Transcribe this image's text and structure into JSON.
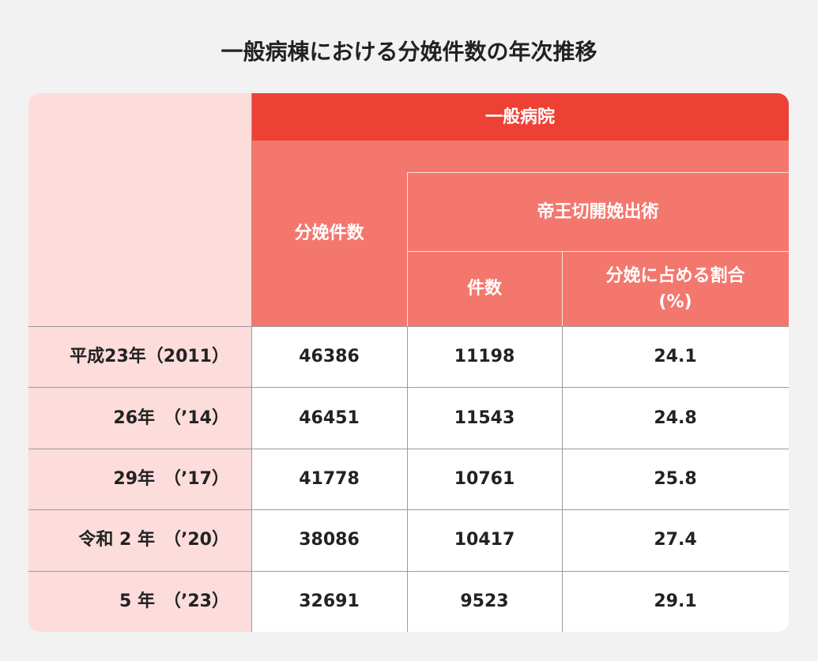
{
  "title": "一般病棟における分娩件数の年次推移",
  "table": {
    "header": {
      "group": "一般病院",
      "births": "分娩件数",
      "subgroup": "帝王切開娩出術",
      "sub": [
        "件数",
        "分娩に占める割合\n(%)"
      ]
    },
    "rows": [
      [
        "平成23年（2011）",
        46386,
        11198,
        24.1
      ],
      [
        "26年　（’14）",
        46451,
        11543,
        24.8
      ],
      [
        "29年　（’17）",
        41778,
        10761,
        25.8
      ],
      [
        "令和 2 年　（’20）",
        38086,
        10417,
        27.4
      ],
      [
        "5 年　（’23）",
        32691,
        9523,
        29.1
      ]
    ]
  }
}
